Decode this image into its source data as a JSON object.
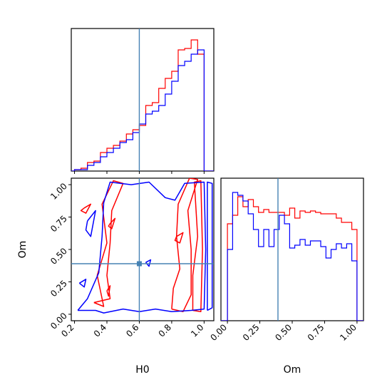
{
  "chart_data": {
    "type": "corner",
    "parameters": [
      "H0",
      "Om"
    ],
    "truth": {
      "H0": 0.6,
      "Om": 0.39
    },
    "colors": {
      "series_a": "#ff0000",
      "series_b": "#0000ff",
      "truth": "#4682b4",
      "frame": "#000000"
    },
    "panels": [
      {
        "id": "h0-histogram",
        "type": "histogram-step",
        "xlim": [
          0.18,
          1.06
        ],
        "ylim": [
          0,
          1
        ],
        "bin_edges": [
          0.2,
          0.24,
          0.28,
          0.32,
          0.36,
          0.4,
          0.44,
          0.48,
          0.52,
          0.56,
          0.6,
          0.64,
          0.68,
          0.72,
          0.76,
          0.8,
          0.84,
          0.88,
          0.92,
          0.96,
          1.0
        ],
        "series": [
          {
            "color": "red",
            "values": [
              0.01,
              0.02,
              0.06,
              0.07,
              0.13,
              0.16,
              0.18,
              0.21,
              0.26,
              0.29,
              0.32,
              0.46,
              0.48,
              0.58,
              0.65,
              0.7,
              0.85,
              0.86,
              0.92,
              0.82
            ]
          },
          {
            "color": "blue",
            "values": [
              0.01,
              0.01,
              0.04,
              0.06,
              0.1,
              0.13,
              0.16,
              0.2,
              0.22,
              0.27,
              0.33,
              0.4,
              0.42,
              0.46,
              0.54,
              0.63,
              0.74,
              0.77,
              0.82,
              0.85
            ]
          }
        ]
      },
      {
        "id": "om-histogram",
        "type": "histogram-step",
        "xlim": [
          -0.05,
          1.05
        ],
        "ylim": [
          0,
          1
        ],
        "bin_edges": [
          0,
          0.04,
          0.08,
          0.12,
          0.16,
          0.2,
          0.24,
          0.28,
          0.32,
          0.36,
          0.4,
          0.44,
          0.48,
          0.52,
          0.56,
          0.6,
          0.64,
          0.68,
          0.72,
          0.76,
          0.8,
          0.84,
          0.88,
          0.92,
          0.96,
          1.0
        ],
        "series": [
          {
            "color": "red",
            "values": [
              0.68,
              0.74,
              0.87,
              0.8,
              0.85,
              0.8,
              0.76,
              0.78,
              0.76,
              0.76,
              0.76,
              0.74,
              0.79,
              0.72,
              0.77,
              0.76,
              0.77,
              0.76,
              0.75,
              0.75,
              0.75,
              0.72,
              0.69,
              0.69,
              0.64
            ]
          },
          {
            "color": "blue",
            "values": [
              0.5,
              0.9,
              0.88,
              0.84,
              0.75,
              0.64,
              0.52,
              0.64,
              0.52,
              0.64,
              0.74,
              0.68,
              0.51,
              0.53,
              0.57,
              0.53,
              0.56,
              0.56,
              0.52,
              0.44,
              0.5,
              0.54,
              0.51,
              0.54,
              0.42
            ]
          }
        ]
      },
      {
        "id": "h0-om-contour",
        "type": "contour",
        "xlim": [
          0.18,
          1.06
        ],
        "ylim": [
          -0.05,
          1.05
        ],
        "truth_marker": [
          0.6,
          0.39
        ],
        "contours": [
          {
            "color": "red",
            "points": [
              [
                0.32,
                0.09
              ],
              [
                0.38,
                0.06
              ],
              [
                0.34,
                0.3
              ],
              [
                0.4,
                0.55
              ],
              [
                0.37,
                0.85
              ],
              [
                0.44,
                1.03
              ],
              [
                0.5,
                1.01
              ],
              [
                0.43,
                0.8
              ],
              [
                0.42,
                0.55
              ],
              [
                0.4,
                0.3
              ],
              [
                0.42,
                0.12
              ],
              [
                0.32,
                0.09
              ]
            ]
          },
          {
            "color": "red",
            "points": [
              [
                0.8,
                0.04
              ],
              [
                0.87,
                0.02
              ],
              [
                0.92,
                0.15
              ],
              [
                0.92,
                0.5
              ],
              [
                0.9,
                0.8
              ],
              [
                0.96,
                1.04
              ],
              [
                0.91,
                1.05
              ],
              [
                0.84,
                0.85
              ],
              [
                0.83,
                0.6
              ],
              [
                0.85,
                0.35
              ],
              [
                0.81,
                0.2
              ],
              [
                0.8,
                0.04
              ]
            ]
          },
          {
            "color": "red",
            "points": [
              [
                0.93,
                0.03
              ],
              [
                0.98,
                0.02
              ],
              [
                0.99,
                0.5
              ],
              [
                0.98,
                1.03
              ],
              [
                0.94,
                1.02
              ],
              [
                0.96,
                0.6
              ],
              [
                0.93,
                0.3
              ],
              [
                0.93,
                0.03
              ]
            ]
          },
          {
            "color": "red",
            "points": [
              [
                0.26,
                0.82
              ],
              [
                0.3,
                0.85
              ],
              [
                0.27,
                0.78
              ],
              [
                0.24,
                0.8
              ],
              [
                0.26,
                0.82
              ]
            ]
          },
          {
            "color": "red",
            "points": [
              [
                0.42,
                0.7
              ],
              [
                0.45,
                0.74
              ],
              [
                0.43,
                0.66
              ],
              [
                0.41,
                0.68
              ],
              [
                0.42,
                0.7
              ]
            ]
          },
          {
            "color": "red",
            "points": [
              [
                0.83,
                0.6
              ],
              [
                0.87,
                0.63
              ],
              [
                0.85,
                0.55
              ],
              [
                0.82,
                0.57
              ],
              [
                0.83,
                0.6
              ]
            ]
          },
          {
            "color": "red",
            "points": [
              [
                0.4,
                0.18
              ],
              [
                0.42,
                0.22
              ],
              [
                0.41,
                0.14
              ],
              [
                0.4,
                0.18
              ]
            ]
          },
          {
            "color": "blue",
            "points": [
              [
                0.22,
                0.03
              ],
              [
                0.33,
                0.03
              ],
              [
                0.38,
                0.01
              ],
              [
                0.5,
                0.04
              ],
              [
                0.6,
                0.02
              ],
              [
                0.7,
                0.04
              ],
              [
                0.8,
                0.02
              ],
              [
                0.92,
                0.03
              ],
              [
                1.0,
                0.04
              ],
              [
                1.01,
                0.5
              ],
              [
                1.0,
                1.02
              ],
              [
                0.88,
                1.01
              ],
              [
                0.82,
                0.88
              ],
              [
                0.76,
                0.9
              ],
              [
                0.66,
                1.02
              ],
              [
                0.55,
                1.0
              ],
              [
                0.42,
                1.02
              ],
              [
                0.38,
                0.86
              ],
              [
                0.37,
                0.6
              ],
              [
                0.35,
                0.32
              ],
              [
                0.28,
                0.12
              ],
              [
                0.22,
                0.03
              ]
            ]
          },
          {
            "color": "blue",
            "points": [
              [
                0.28,
                0.72
              ],
              [
                0.33,
                0.8
              ],
              [
                0.3,
                0.6
              ],
              [
                0.27,
                0.65
              ],
              [
                0.28,
                0.72
              ]
            ]
          },
          {
            "color": "blue",
            "points": [
              [
                0.23,
                0.24
              ],
              [
                0.27,
                0.27
              ],
              [
                0.26,
                0.21
              ],
              [
                0.23,
                0.24
              ]
            ]
          },
          {
            "color": "blue",
            "points": [
              [
                0.64,
                0.4
              ],
              [
                0.67,
                0.42
              ],
              [
                0.66,
                0.37
              ],
              [
                0.64,
                0.4
              ]
            ]
          },
          {
            "color": "blue",
            "points": [
              [
                1.02,
                0.03
              ],
              [
                1.05,
                0.05
              ],
              [
                1.05,
                1.01
              ],
              [
                1.02,
                1.02
              ],
              [
                1.02,
                0.03
              ]
            ]
          }
        ]
      }
    ],
    "xticks": {
      "h0-histogram": [
        0.2,
        0.4,
        0.6,
        0.8,
        1.0
      ],
      "h0-om-contour": [
        "0.2",
        "0.4",
        "0.6",
        "0.8",
        "1.0"
      ],
      "om-histogram": [
        "0.00",
        "0.25",
        "0.50",
        "0.75",
        "1.00"
      ]
    },
    "yticks": {
      "h0-om-contour": [
        "0.00",
        "0.25",
        "0.50",
        "0.75",
        "1.00"
      ]
    },
    "xlabels": {
      "h0-om-contour": "H0",
      "om-histogram": "Om"
    },
    "ylabels": {
      "h0-om-contour": "Om"
    }
  }
}
